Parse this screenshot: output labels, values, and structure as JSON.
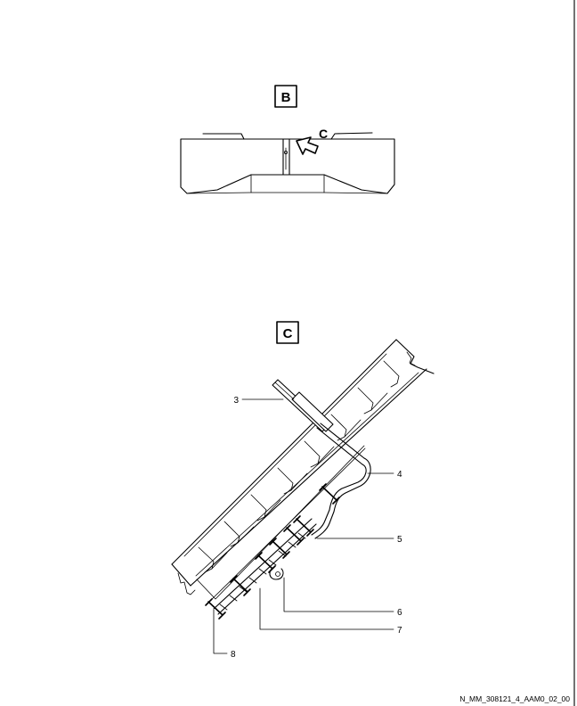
{
  "view_b": {
    "label": "B",
    "callout": "C"
  },
  "view_c": {
    "label": "C"
  },
  "callouts": [
    {
      "id": "3"
    },
    {
      "id": "4"
    },
    {
      "id": "5"
    },
    {
      "id": "6"
    },
    {
      "id": "7"
    },
    {
      "id": "8"
    }
  ],
  "figure_id": "N_MM_308121_4_AAM0_02_00"
}
